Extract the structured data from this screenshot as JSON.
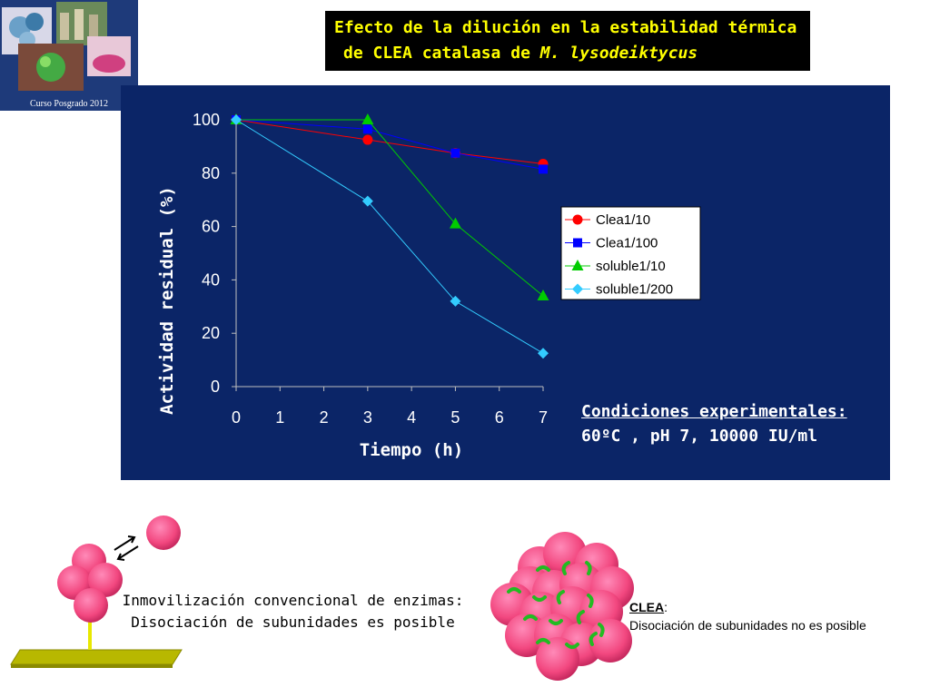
{
  "logo": {
    "caption": "Curso Posgrado 2012"
  },
  "title": {
    "line1": "Efecto de la dilución en la estabilidad térmica",
    "line2_prefix": "de CLEA catalasa de ",
    "line2_italic": "M. lysodeiktycus"
  },
  "chart_data": {
    "type": "line",
    "xlabel": "Tiempo (h)",
    "ylabel": "Actividad residual (%)",
    "xlim": [
      0,
      7
    ],
    "ylim": [
      0,
      100
    ],
    "x_ticks": [
      "0",
      "1",
      "2",
      "3",
      "4",
      "5",
      "6",
      "7"
    ],
    "y_ticks": [
      "0",
      "20",
      "40",
      "60",
      "80",
      "100"
    ],
    "grid": false,
    "legend_position": "right",
    "series": [
      {
        "name": "Clea1/10",
        "color": "#ff0000",
        "marker": "circle",
        "x": [
          0,
          3,
          5,
          7
        ],
        "y": [
          100,
          92.5,
          87.5,
          83.5
        ]
      },
      {
        "name": "Clea1/100",
        "color": "#0000ff",
        "marker": "square",
        "x": [
          0,
          3,
          5,
          7
        ],
        "y": [
          100,
          96.5,
          87.5,
          81.5
        ]
      },
      {
        "name": "soluble1/10",
        "color": "#00cc00",
        "marker": "triangle",
        "x": [
          0,
          3,
          5,
          7
        ],
        "y": [
          100,
          100,
          61,
          34
        ]
      },
      {
        "name": "soluble1/200",
        "color": "#33ccff",
        "marker": "diamond",
        "x": [
          0,
          3,
          5,
          7
        ],
        "y": [
          100,
          69.5,
          32,
          12.5
        ]
      }
    ]
  },
  "conditions": {
    "heading": "Condiciones experimentales:",
    "values": "60ºC , pH 7, 10000 IU/ml"
  },
  "illustrations": {
    "conventional_caption_line1": "Inmovilización convencional de enzimas:",
    "conventional_caption_line2": "Disociación de subunidades es posible",
    "clea_title": "CLEA",
    "clea_suffix": ":",
    "clea_text": "Disociación de subunidades no es posible"
  }
}
